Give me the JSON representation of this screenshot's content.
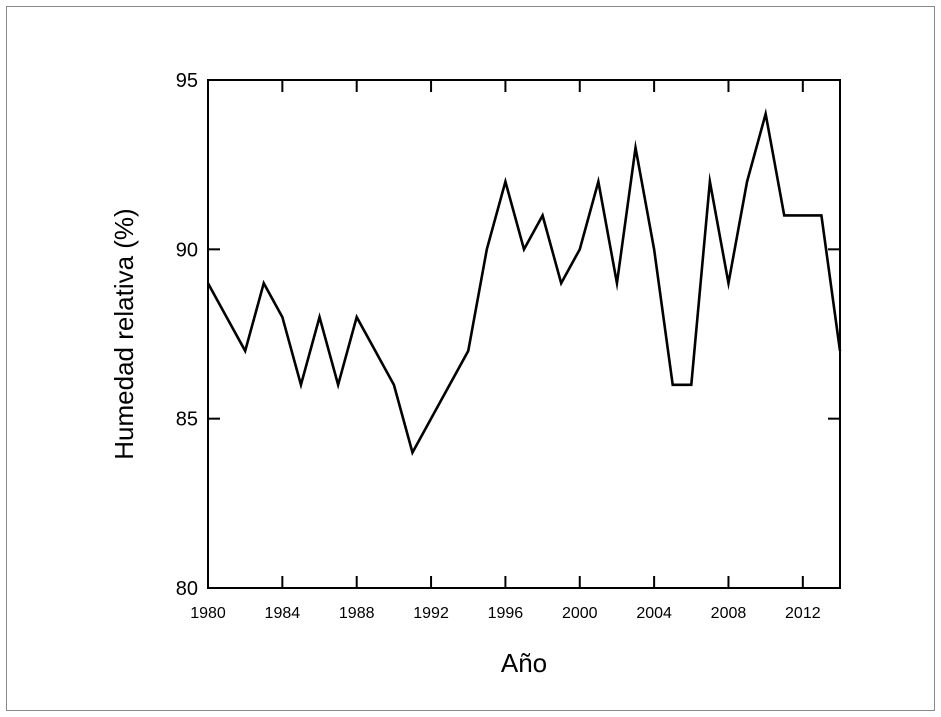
{
  "chart_data": {
    "type": "line",
    "title": "",
    "xlabel": "Año",
    "ylabel": "Humedad relativa (%)",
    "xlim": [
      1980,
      2014
    ],
    "ylim": [
      80,
      95
    ],
    "x_ticks": [
      1980,
      1984,
      1988,
      1992,
      1996,
      2000,
      2004,
      2008,
      2012
    ],
    "y_ticks": [
      80,
      85,
      90,
      95
    ],
    "grid": false,
    "colors": {
      "line": "#000000",
      "axis": "#000000",
      "frame": "#8a8a8a"
    },
    "series": [
      {
        "x": [
          1980,
          1981,
          1982,
          1983,
          1984,
          1985,
          1986,
          1987,
          1988,
          1989,
          1990,
          1991,
          1992,
          1993,
          1994,
          1995,
          1996,
          1997,
          1998,
          1999,
          2000,
          2001,
          2002,
          2003,
          2004,
          2005,
          2006,
          2007,
          2008,
          2009,
          2010,
          2011,
          2012,
          2013,
          2014
        ],
        "values": [
          89,
          88,
          87,
          89,
          88,
          86,
          88,
          86,
          88,
          87,
          86,
          84,
          85,
          86,
          87,
          90,
          92,
          90,
          91,
          89,
          90,
          92,
          89,
          93,
          90,
          86,
          86,
          92,
          89,
          92,
          94,
          91,
          91,
          91,
          87
        ]
      }
    ]
  }
}
